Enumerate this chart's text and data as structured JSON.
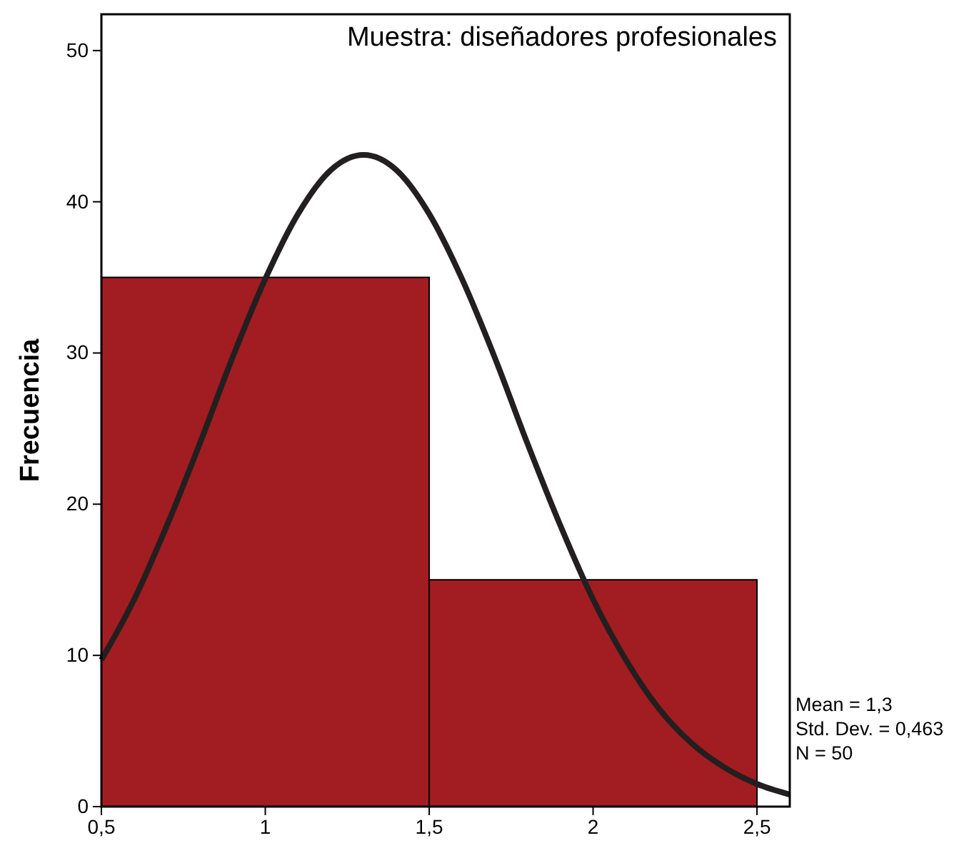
{
  "chart_data": {
    "type": "histogram",
    "title": "Muestra: diseñadores profesionales",
    "ylabel": "Frecuencia",
    "xlim": [
      0.5,
      2.6
    ],
    "ylim": [
      0,
      52.4
    ],
    "xticks": [
      {
        "value": 0.5,
        "label": "0,5"
      },
      {
        "value": 1,
        "label": "1"
      },
      {
        "value": 1.5,
        "label": "1,5"
      },
      {
        "value": 2,
        "label": "2"
      },
      {
        "value": 2.5,
        "label": "2,5"
      }
    ],
    "yticks": [
      0,
      10,
      20,
      30,
      40,
      50
    ],
    "grid": false,
    "series": [
      {
        "bins": [
          0.5,
          1.5,
          2.5
        ],
        "values": [
          35,
          15
        ],
        "color": "#a11d21"
      },
      {
        "type": "line",
        "x": [
          0.5,
          0.6,
          0.7,
          0.8,
          0.9,
          1.0,
          1.1,
          1.2,
          1.3,
          1.4,
          1.5,
          1.6,
          1.7,
          1.8,
          1.9,
          2.0,
          2.1,
          2.2,
          2.3,
          2.4,
          2.5,
          2.6
        ],
        "values": [
          9.7,
          13.7,
          18.6,
          24.0,
          29.7,
          34.9,
          39.2,
          42.1,
          43.1,
          42.1,
          39.2,
          34.9,
          29.7,
          24.0,
          18.6,
          13.7,
          9.7,
          6.5,
          4.2,
          2.6,
          1.5,
          0.8
        ],
        "color": "#231f20"
      }
    ],
    "annotations": [
      "Mean = 1,3",
      "Std. Dev. = 0,463",
      "N = 50"
    ]
  }
}
